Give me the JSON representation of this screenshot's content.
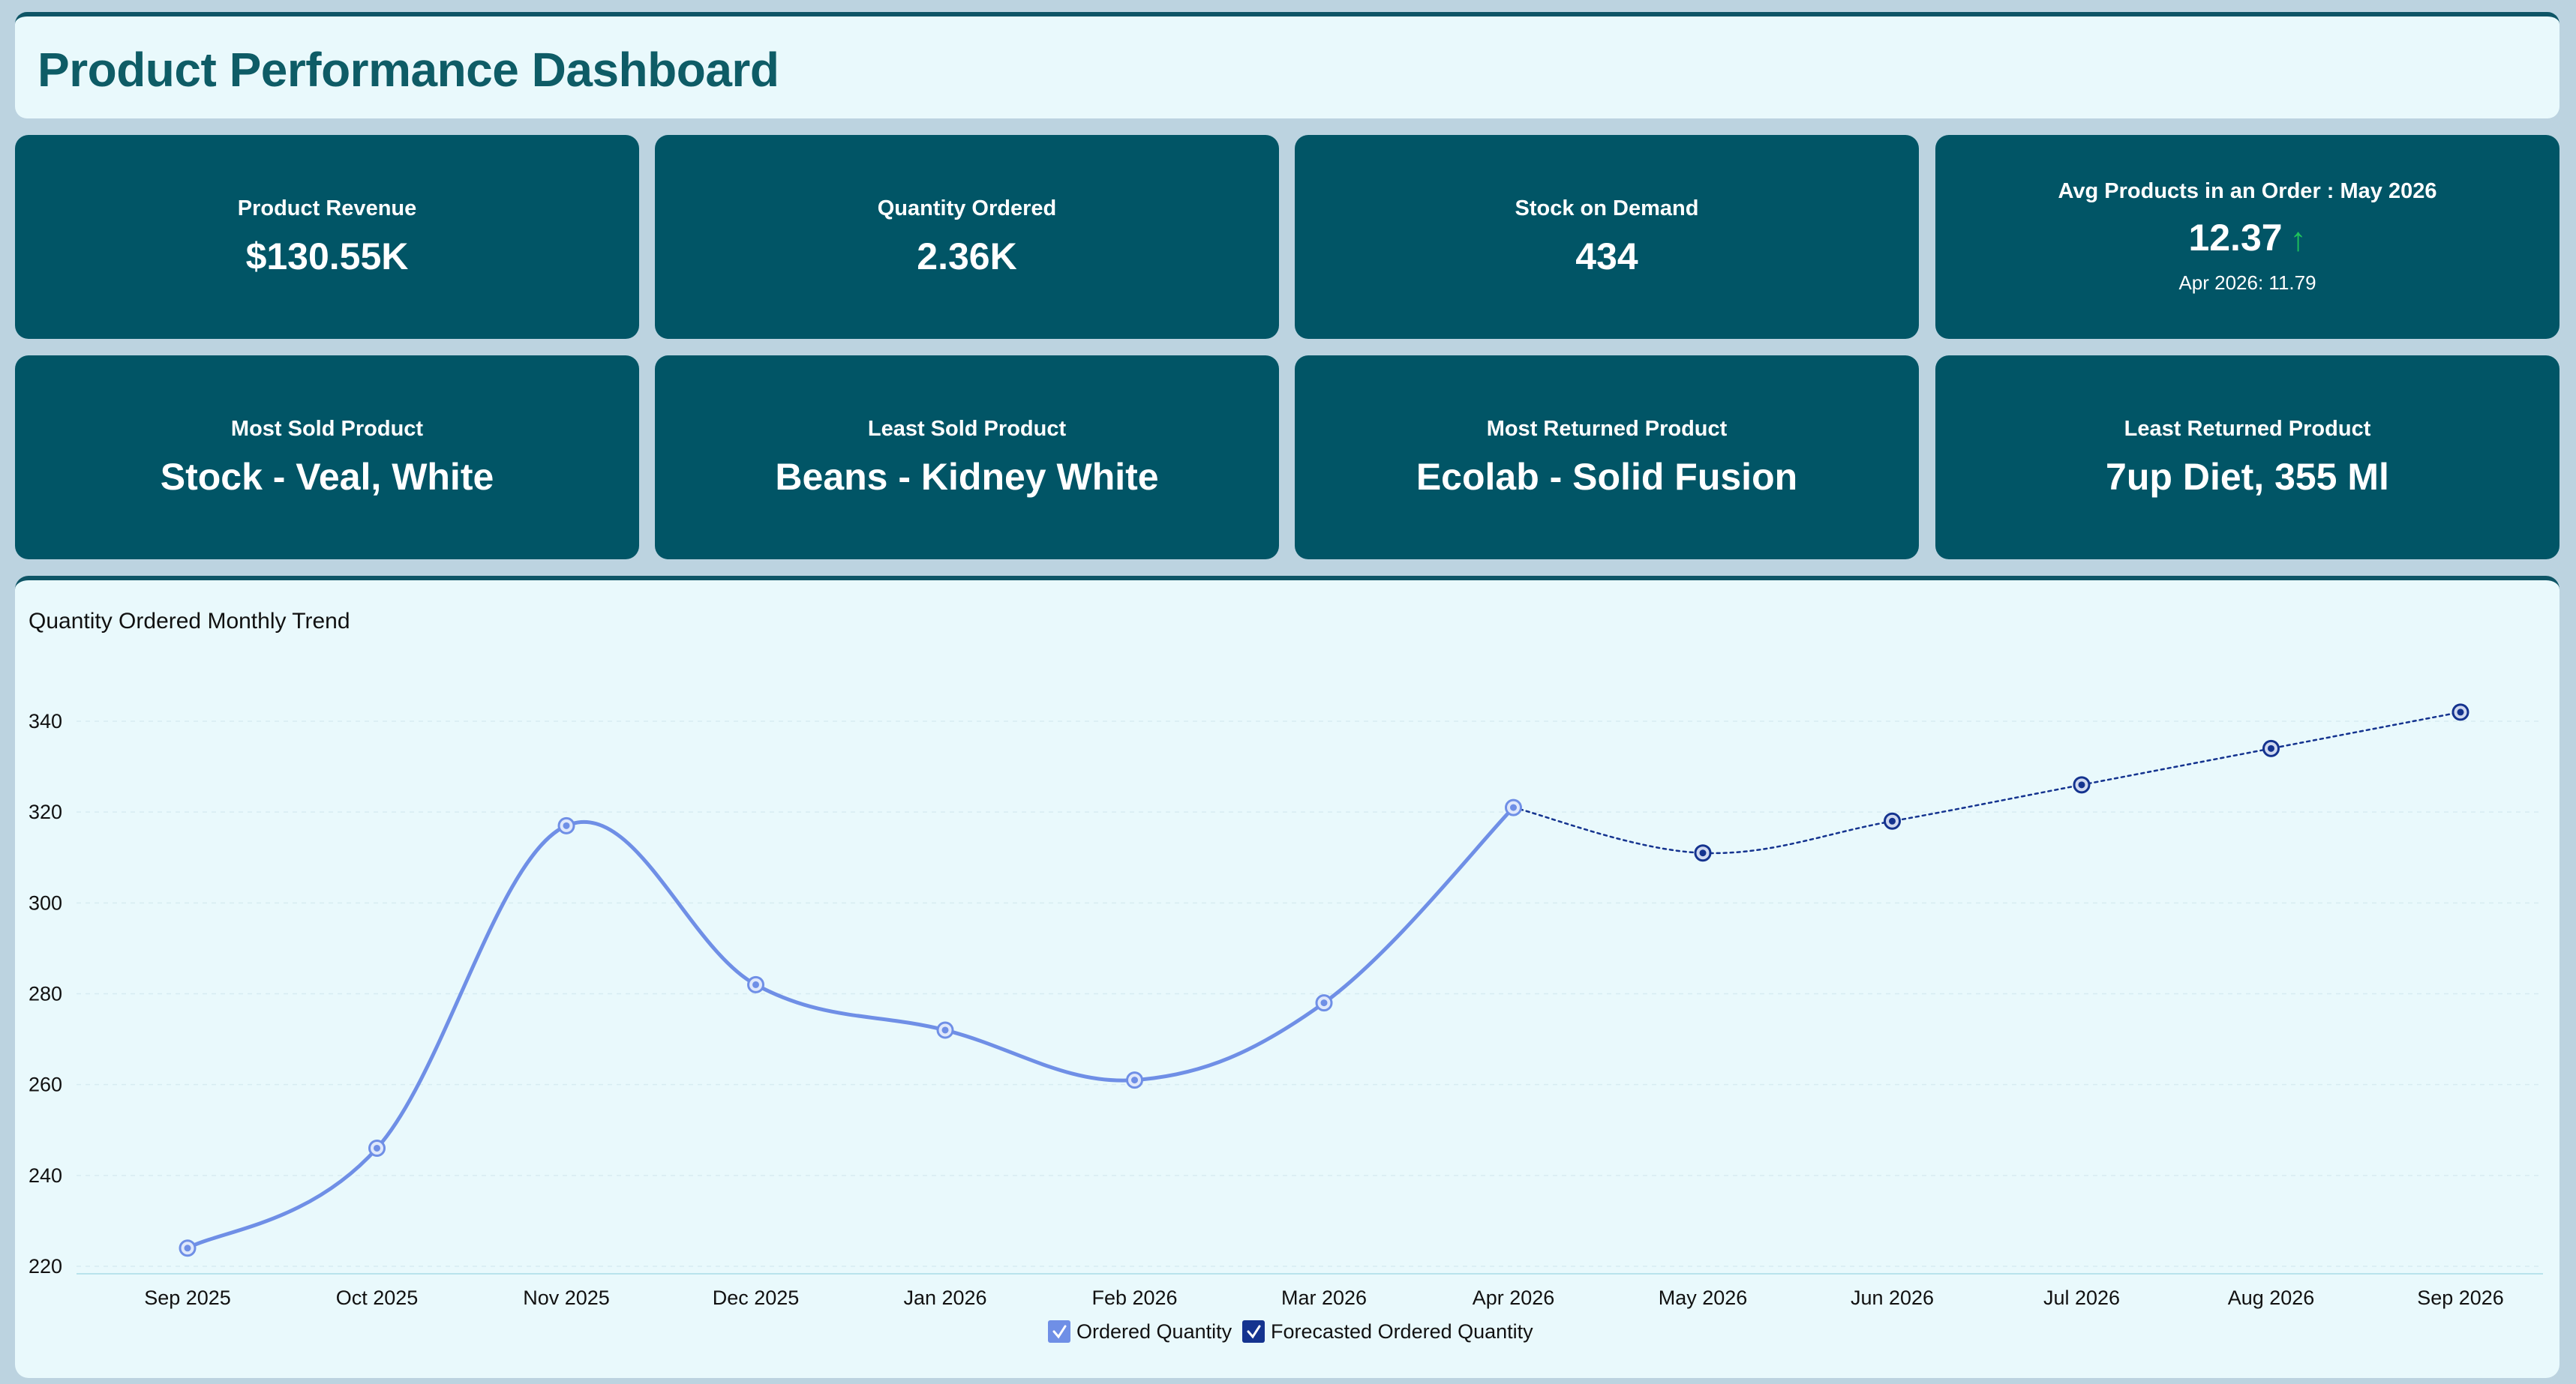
{
  "header": {
    "title": "Product Performance Dashboard"
  },
  "kpis": {
    "revenue": {
      "label": "Product Revenue",
      "value": "$130.55K"
    },
    "quantity": {
      "label": "Quantity Ordered",
      "value": "2.36K"
    },
    "stock": {
      "label": "Stock on Demand",
      "value": "434"
    },
    "avg_products": {
      "label": "Avg Products in an Order : May 2026",
      "value": "12.37",
      "arrow": "↑",
      "compare": "Apr 2026: 11.79"
    },
    "most_sold": {
      "label": "Most Sold Product",
      "value": "Stock - Veal, White"
    },
    "least_sold": {
      "label": "Least Sold Product",
      "value": "Beans - Kidney White"
    },
    "most_returned": {
      "label": "Most Returned Product",
      "value": "Ecolab - Solid Fusion"
    },
    "least_returned": {
      "label": "Least Returned Product",
      "value": "7up Diet, 355 Ml"
    }
  },
  "colors": {
    "kpi_bg": "#015566",
    "ordered": "#6f8fe6",
    "forecast": "#14338f",
    "up_arrow": "#1fc35a"
  },
  "chart_data": {
    "type": "line",
    "title": "Quantity Ordered Monthly Trend",
    "xlabel": "",
    "ylabel": "",
    "categories": [
      "Sep 2025",
      "Oct 2025",
      "Nov 2025",
      "Dec 2025",
      "Jan 2026",
      "Feb 2026",
      "Mar 2026",
      "Apr 2026",
      "May 2026",
      "Jun 2026",
      "Jul 2026",
      "Aug 2026",
      "Sep 2026"
    ],
    "ylim": [
      220,
      340
    ],
    "yticks": [
      220,
      240,
      260,
      280,
      300,
      320,
      340
    ],
    "grid": true,
    "legend": "bottom-center",
    "series": [
      {
        "name": "Ordered Quantity",
        "style": "solid",
        "values": [
          224,
          246,
          317,
          282,
          272,
          261,
          278,
          321,
          null,
          null,
          null,
          null,
          null
        ]
      },
      {
        "name": "Forecasted Ordered Quantity",
        "style": "dotted",
        "values": [
          null,
          null,
          null,
          null,
          null,
          null,
          null,
          321,
          311,
          318,
          326,
          334,
          342
        ]
      }
    ]
  }
}
